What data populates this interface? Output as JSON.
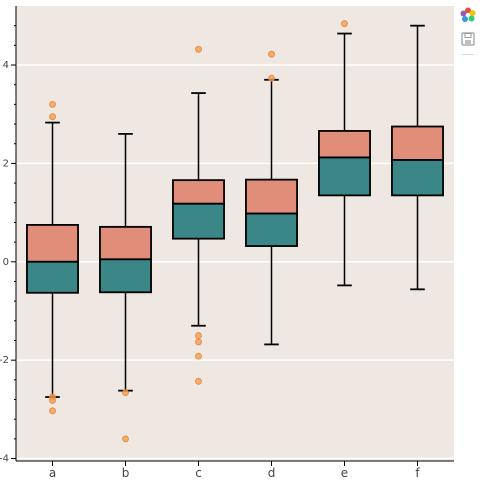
{
  "chart_data": {
    "type": "box",
    "categories": [
      "a",
      "b",
      "c",
      "d",
      "e",
      "f"
    ],
    "ylim": [
      -4.05,
      5.2
    ],
    "yticks": [
      -4,
      -2,
      0,
      2,
      4
    ],
    "grid": {
      "horizontal": true,
      "vertical": false
    },
    "background": "#efe8e2",
    "colors": {
      "upper_box": "#e08e79",
      "lower_box": "#3b8686",
      "outlier": "#f39c4f",
      "whisker": "#000000"
    },
    "boxes": [
      {
        "category": "a",
        "lower": -2.75,
        "q1": -0.63,
        "median": 0.0,
        "q3": 0.75,
        "upper": 2.83,
        "outliers": [
          3.2,
          2.95,
          -2.75,
          -2.82,
          -3.03
        ]
      },
      {
        "category": "b",
        "lower": -2.62,
        "q1": -0.62,
        "median": 0.05,
        "q3": 0.71,
        "upper": 2.6,
        "outliers": [
          -2.66,
          -3.6
        ]
      },
      {
        "category": "c",
        "lower": -1.3,
        "q1": 0.47,
        "median": 1.18,
        "q3": 1.66,
        "upper": 3.43,
        "outliers": [
          4.32,
          -1.5,
          -1.63,
          -1.92,
          -2.43
        ]
      },
      {
        "category": "d",
        "lower": -1.68,
        "q1": 0.32,
        "median": 0.98,
        "q3": 1.67,
        "upper": 3.7,
        "outliers": [
          4.22,
          3.73
        ]
      },
      {
        "category": "e",
        "lower": -0.48,
        "q1": 1.35,
        "median": 2.12,
        "q3": 2.66,
        "upper": 4.64,
        "outliers": [
          4.84
        ]
      },
      {
        "category": "f",
        "lower": -0.56,
        "q1": 1.35,
        "median": 2.07,
        "q3": 2.75,
        "upper": 4.8,
        "outliers": []
      }
    ]
  },
  "toolbar": {
    "logo_icon": "bokeh-logo-icon",
    "save_icon": "save-icon"
  }
}
